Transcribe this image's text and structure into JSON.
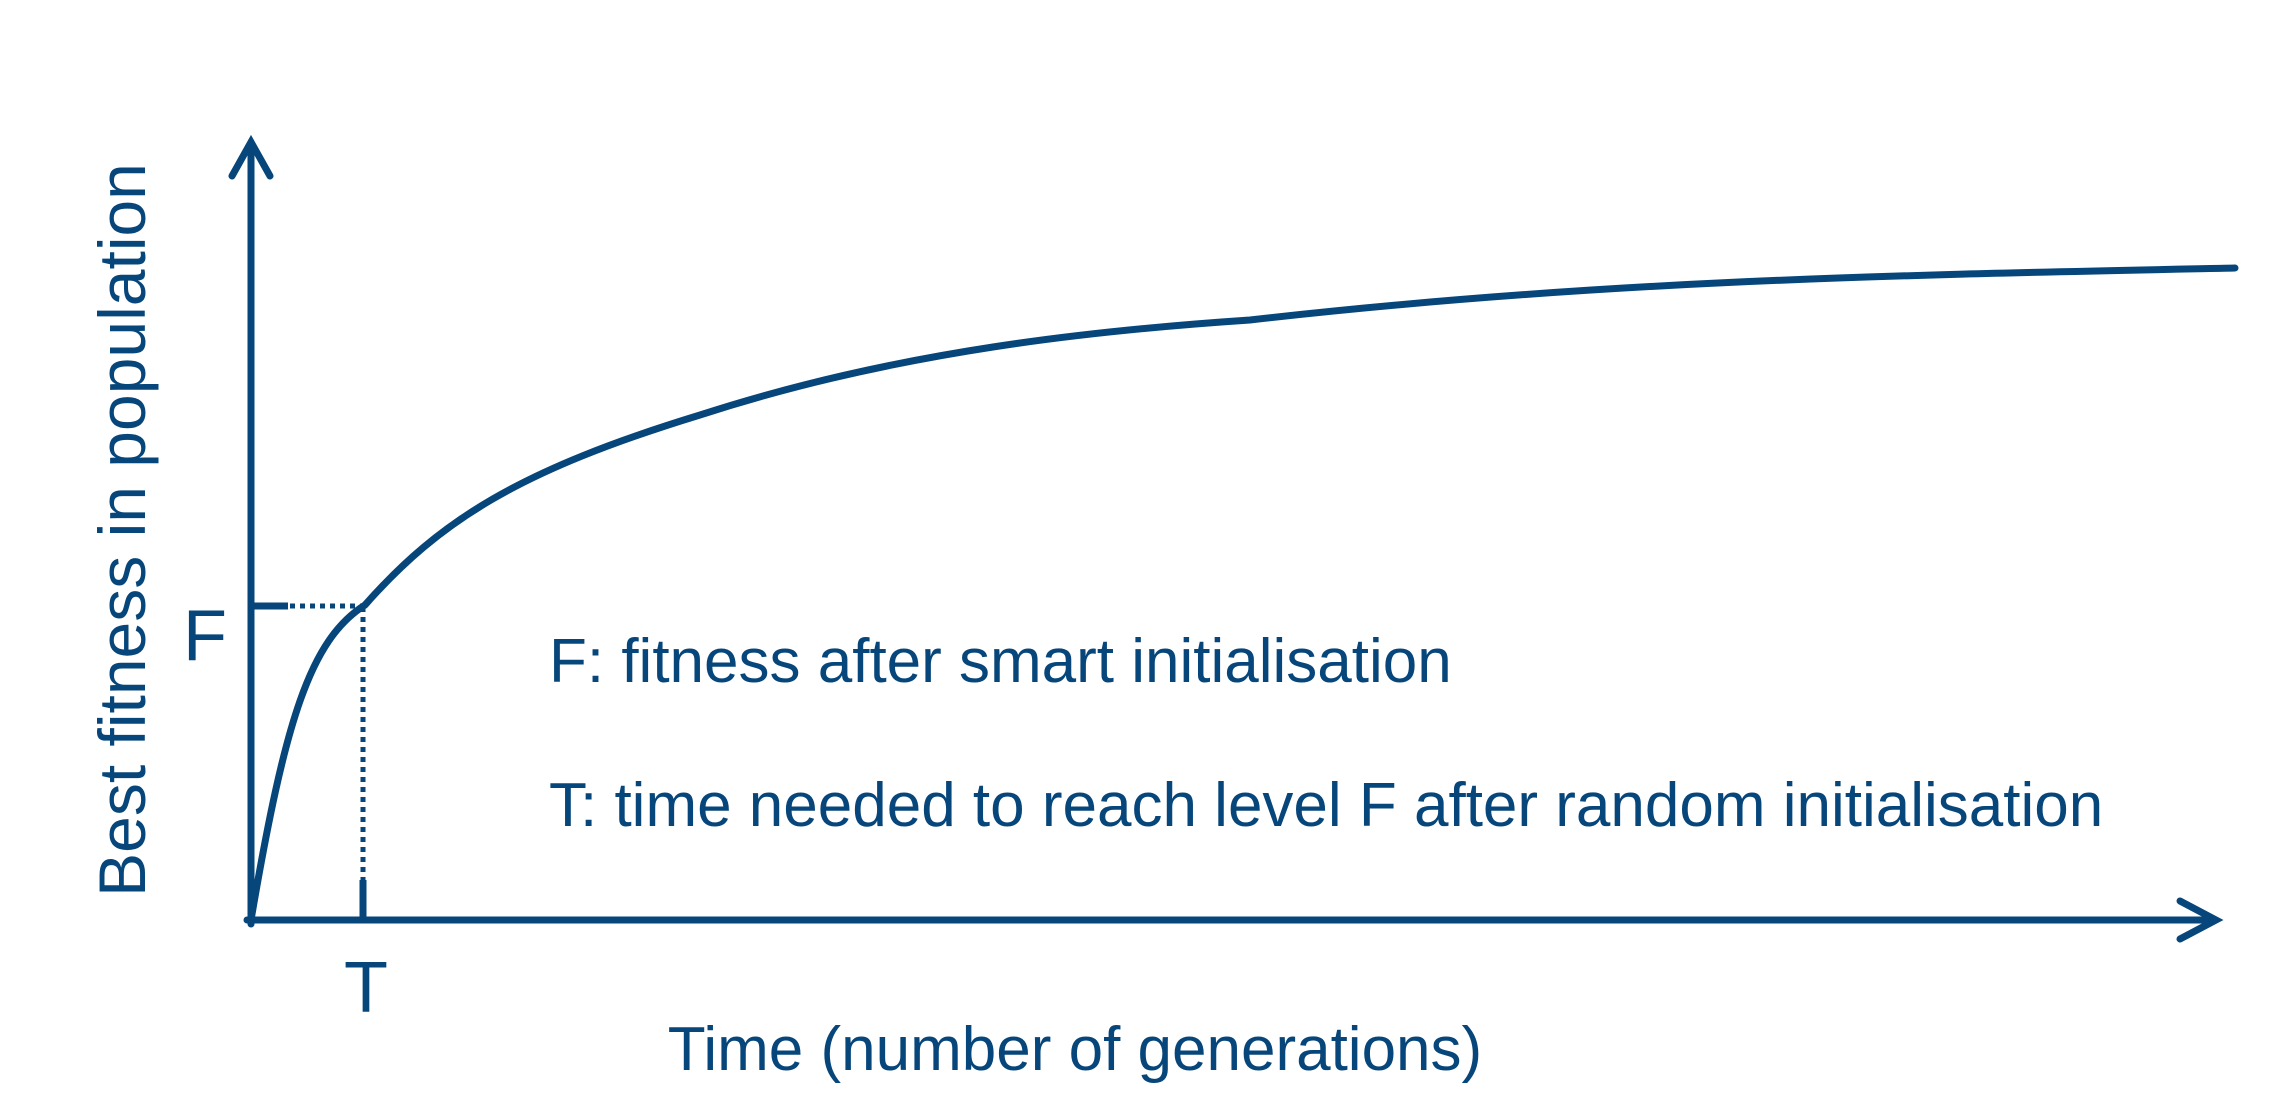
{
  "diagram": {
    "y_axis_label": "Best fitness in population",
    "x_axis_label": "Time (number of generations)",
    "f_marker": "F",
    "t_marker": "T",
    "legend": [
      "F: fitness after smart initialisation",
      "T: time needed to reach level F after random initialisation"
    ]
  },
  "colors": {
    "primary": "#07467a"
  }
}
